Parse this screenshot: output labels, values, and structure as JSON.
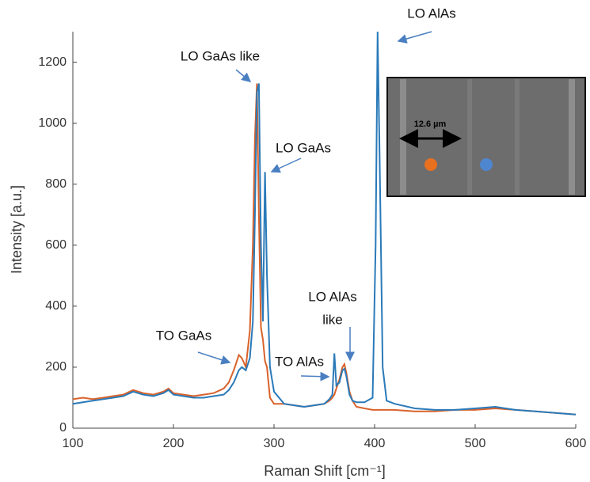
{
  "chart_data": {
    "type": "line",
    "xlabel": "Raman Shift [cm⁻¹]",
    "ylabel": "Intensity [a.u.]",
    "xlim": [
      100,
      600
    ],
    "ylim": [
      0,
      1300
    ],
    "xticks": [
      100,
      200,
      300,
      400,
      500,
      600
    ],
    "yticks": [
      0,
      200,
      400,
      600,
      800,
      1000,
      1200
    ],
    "x": [
      100,
      110,
      120,
      130,
      140,
      150,
      160,
      170,
      180,
      190,
      195,
      200,
      210,
      220,
      230,
      240,
      250,
      255,
      260,
      265,
      268,
      272,
      276,
      279,
      281,
      283,
      285,
      287,
      289,
      291,
      293,
      296,
      300,
      310,
      320,
      330,
      340,
      350,
      355,
      358,
      360,
      362,
      365,
      368,
      370,
      372,
      375,
      378,
      382,
      390,
      398,
      401,
      403,
      405,
      408,
      412,
      420,
      440,
      460,
      480,
      500,
      520,
      540,
      560,
      580,
      600
    ],
    "series": [
      {
        "color": "#d9622b",
        "values": [
          95,
          100,
          95,
          100,
          105,
          110,
          125,
          115,
          110,
          120,
          130,
          115,
          110,
          105,
          110,
          115,
          130,
          150,
          190,
          240,
          230,
          200,
          320,
          600,
          950,
          1130,
          700,
          330,
          290,
          220,
          200,
          100,
          80,
          80,
          75,
          70,
          75,
          80,
          90,
          100,
          110,
          130,
          160,
          200,
          210,
          180,
          120,
          90,
          70,
          65,
          60,
          60,
          60,
          60,
          60,
          60,
          60,
          55,
          55,
          60,
          60,
          65,
          60,
          55,
          50,
          45
        ]
      },
      {
        "color": "#2a7ab9",
        "values": [
          80,
          85,
          90,
          95,
          100,
          105,
          120,
          110,
          105,
          115,
          125,
          110,
          105,
          100,
          100,
          105,
          110,
          125,
          150,
          190,
          200,
          190,
          230,
          350,
          700,
          1100,
          1130,
          600,
          350,
          840,
          500,
          200,
          120,
          80,
          75,
          70,
          75,
          80,
          95,
          110,
          245,
          140,
          150,
          190,
          195,
          170,
          110,
          90,
          85,
          85,
          100,
          600,
          1300,
          900,
          200,
          90,
          80,
          65,
          60,
          60,
          65,
          70,
          60,
          55,
          50,
          45
        ]
      }
    ],
    "annotations": [
      "LO AlAs",
      "LO GaAs like",
      "LO GaAs",
      "TO GaAs",
      "TO AlAs",
      "LO AlAs",
      "like"
    ],
    "inset_label": "12.6 µm"
  }
}
